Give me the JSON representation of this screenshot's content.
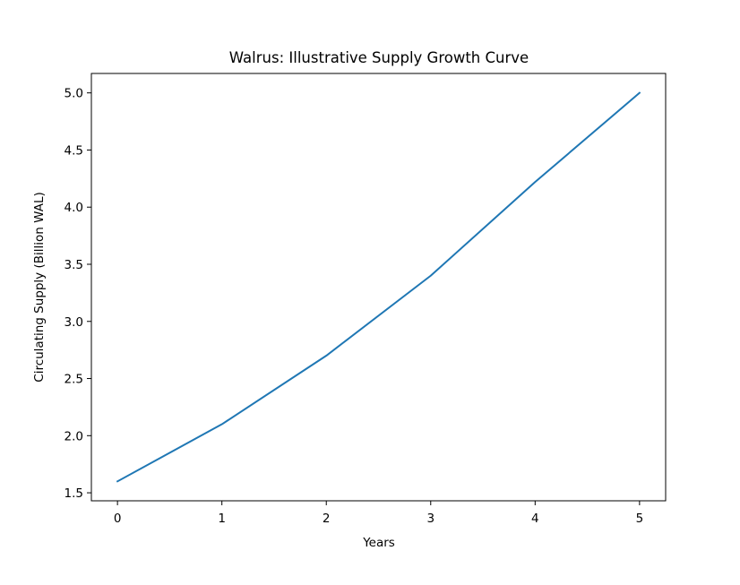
{
  "chart_data": {
    "type": "line",
    "title": "Walrus: Illustrative Supply Growth Curve",
    "xlabel": "Years",
    "ylabel": "Circulating Supply (Billion WAL)",
    "x": [
      0,
      1,
      2,
      3,
      4,
      5
    ],
    "series": [
      {
        "values": [
          1.6,
          2.1,
          2.7,
          3.4,
          4.22,
          5.0
        ],
        "color": "#1f77b4"
      }
    ],
    "xlim": [
      -0.25,
      5.25
    ],
    "ylim": [
      1.43,
      5.17
    ],
    "xticks": [
      "0",
      "1",
      "2",
      "3",
      "4",
      "5"
    ],
    "yticks": [
      "1.5",
      "2.0",
      "2.5",
      "3.0",
      "3.5",
      "4.0",
      "4.5",
      "5.0"
    ],
    "grid": false,
    "legend": "none"
  }
}
